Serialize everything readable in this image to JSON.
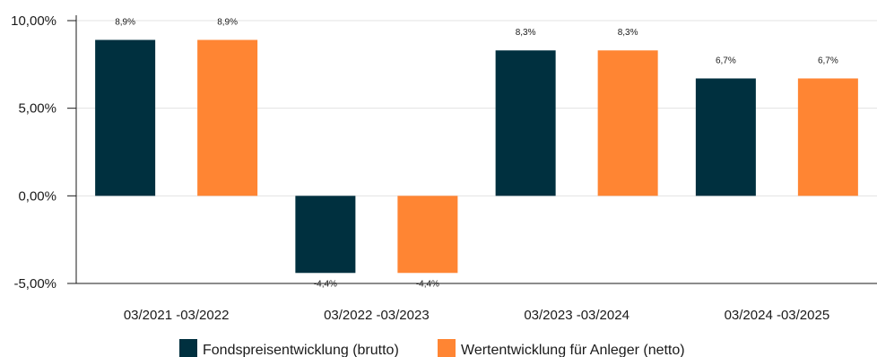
{
  "chart_data": {
    "type": "bar",
    "title": "",
    "xlabel": "",
    "ylabel": "",
    "categories": [
      "03/2021 -03/2022",
      "03/2022 -03/2023",
      "03/2023 -03/2024",
      "03/2024 -03/2025"
    ],
    "series": [
      {
        "name": "Fondspreisentwicklung (brutto)",
        "color": "#00303f",
        "values": [
          8.9,
          -4.4,
          8.3,
          6.7
        ],
        "labels": [
          "8,9%",
          "-4,4%",
          "8,3%",
          "6,7%"
        ]
      },
      {
        "name": "Wertentwicklung für Anleger (netto)",
        "color": "#ff8533",
        "values": [
          8.9,
          -4.4,
          8.3,
          6.7
        ],
        "labels": [
          "8,9%",
          "-4,4%",
          "8,3%",
          "6,7%"
        ]
      }
    ],
    "ylim": [
      -5,
      10
    ],
    "yticks": [
      {
        "value": 10,
        "label": "10,00%"
      },
      {
        "value": 5,
        "label": "5,00%"
      },
      {
        "value": 0,
        "label": "0,00%"
      },
      {
        "value": -5,
        "label": "-5,00%"
      }
    ],
    "grid": true,
    "legend_position": "bottom-center"
  }
}
